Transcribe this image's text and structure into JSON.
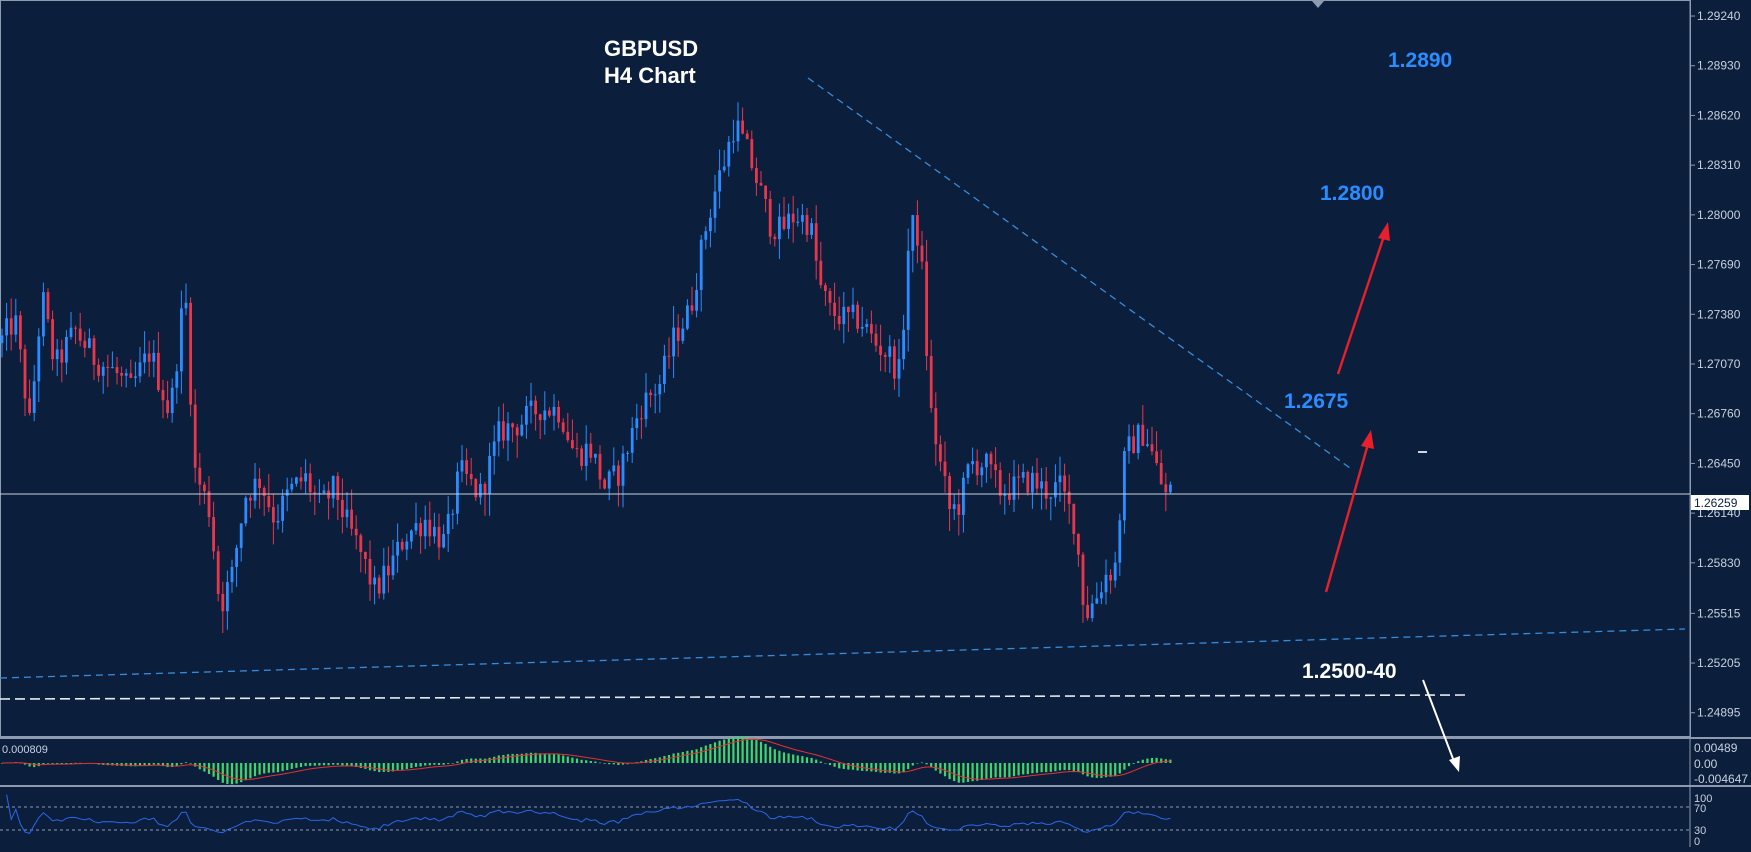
{
  "chart_data": {
    "type": "candlestick",
    "symbol": "GBPUSD",
    "timeframe": "H4 Chart",
    "current_price": "1.26259",
    "current_price_value": 1.26259,
    "y_axis_labels": [
      "1.29240",
      "1.28930",
      "1.28620",
      "1.28310",
      "1.28000",
      "1.27690",
      "1.27380",
      "1.27070",
      "1.26760",
      "1.26450",
      "1.26140",
      "1.25830",
      "1.25515",
      "1.25205",
      "1.24895"
    ],
    "ylim": [
      1.2475,
      1.2934
    ],
    "annotations": [
      {
        "text": "1.2890",
        "color": "#2b8cff"
      },
      {
        "text": "1.2800",
        "color": "#2b8cff"
      },
      {
        "text": "1.2675",
        "color": "#2b8cff"
      },
      {
        "text": "1.2500-40",
        "color": "#ffffff"
      }
    ],
    "macd": {
      "value_label": "0.000809",
      "axis_labels": [
        "0.00489",
        "0.00",
        "-0.004647"
      ]
    },
    "rsi": {
      "axis_labels": [
        "100",
        "70",
        "30",
        "0"
      ]
    },
    "colors": {
      "background": "#0b1f3d",
      "bull": "#2b8cff",
      "bear": "#e8364a",
      "trendline": "#3a8bd6",
      "arrow_up": "#e8202c",
      "arrow_down": "#ffffff",
      "macd_hist": "#3fd66b",
      "macd_signal": "#e83030",
      "rsi_line": "#2c66e8"
    },
    "price_path": [
      [
        0,
        1.272
      ],
      [
        15,
        1.2735
      ],
      [
        30,
        1.2668
      ],
      [
        42,
        1.275
      ],
      [
        55,
        1.2705
      ],
      [
        75,
        1.2728
      ],
      [
        95,
        1.271
      ],
      [
        115,
        1.2702
      ],
      [
        130,
        1.269
      ],
      [
        150,
        1.2715
      ],
      [
        170,
        1.2675
      ],
      [
        185,
        1.2755
      ],
      [
        195,
        1.264
      ],
      [
        210,
        1.2615
      ],
      [
        220,
        1.2555
      ],
      [
        232,
        1.2575
      ],
      [
        245,
        1.2625
      ],
      [
        260,
        1.2635
      ],
      [
        275,
        1.261
      ],
      [
        290,
        1.2628
      ],
      [
        305,
        1.2636
      ],
      [
        320,
        1.2618
      ],
      [
        335,
        1.263
      ],
      [
        345,
        1.261
      ],
      [
        360,
        1.259
      ],
      [
        375,
        1.2565
      ],
      [
        390,
        1.258
      ],
      [
        405,
        1.26
      ],
      [
        425,
        1.261
      ],
      [
        445,
        1.2595
      ],
      [
        460,
        1.264
      ],
      [
        480,
        1.2625
      ],
      [
        500,
        1.2665
      ],
      [
        520,
        1.267
      ],
      [
        540,
        1.268
      ],
      [
        560,
        1.2678
      ],
      [
        575,
        1.265
      ],
      [
        590,
        1.2655
      ],
      [
        605,
        1.263
      ],
      [
        620,
        1.264
      ],
      [
        640,
        1.268
      ],
      [
        660,
        1.2695
      ],
      [
        675,
        1.2725
      ],
      [
        690,
        1.274
      ],
      [
        705,
        1.279
      ],
      [
        715,
        1.2815
      ],
      [
        725,
        1.2835
      ],
      [
        735,
        1.2858
      ],
      [
        750,
        1.2835
      ],
      [
        760,
        1.2815
      ],
      [
        770,
        1.2795
      ],
      [
        780,
        1.279
      ],
      [
        795,
        1.28
      ],
      [
        810,
        1.2795
      ],
      [
        820,
        1.2755
      ],
      [
        830,
        1.274
      ],
      [
        845,
        1.2735
      ],
      [
        860,
        1.2735
      ],
      [
        875,
        1.272
      ],
      [
        890,
        1.2712
      ],
      [
        900,
        1.27
      ],
      [
        910,
        1.2795
      ],
      [
        920,
        1.2785
      ],
      [
        930,
        1.268
      ],
      [
        940,
        1.2645
      ],
      [
        950,
        1.2615
      ],
      [
        960,
        1.262
      ],
      [
        970,
        1.2645
      ],
      [
        985,
        1.2645
      ],
      [
        1000,
        1.2628
      ],
      [
        1015,
        1.263
      ],
      [
        1030,
        1.2635
      ],
      [
        1045,
        1.2628
      ],
      [
        1060,
        1.263
      ],
      [
        1075,
        1.2608
      ],
      [
        1085,
        1.255
      ],
      [
        1095,
        1.256
      ],
      [
        1105,
        1.2575
      ],
      [
        1115,
        1.258
      ],
      [
        1125,
        1.265
      ],
      [
        1135,
        1.266
      ],
      [
        1145,
        1.2665
      ],
      [
        1155,
        1.2645
      ],
      [
        1165,
        1.2625
      ],
      [
        1175,
        1.263
      ]
    ]
  }
}
